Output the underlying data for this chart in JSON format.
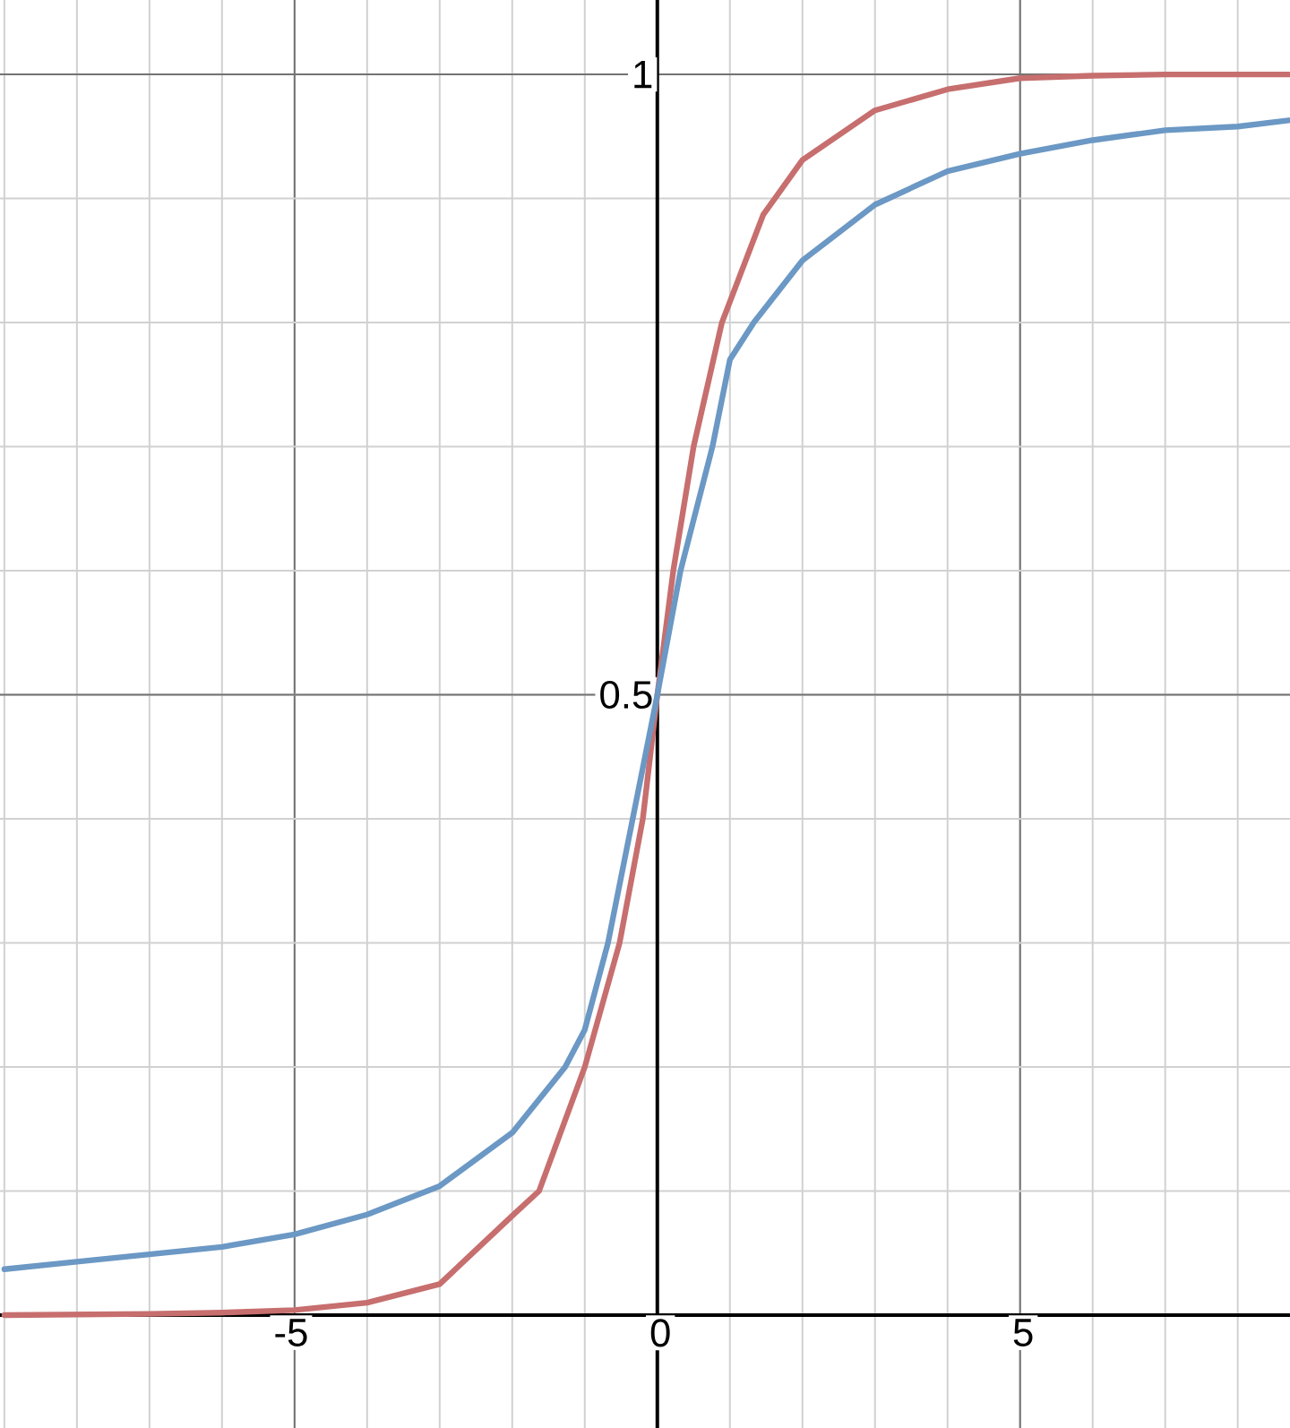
{
  "chart_data": {
    "type": "line",
    "series": [
      {
        "color": "#c76e6e",
        "x": [
          -9,
          -7,
          -6,
          -5,
          -4,
          -3,
          -2,
          -1.63,
          -1,
          -0.52,
          -0.2,
          0,
          0.22,
          0.5,
          0.89,
          1.46,
          2,
          3,
          4,
          5,
          6,
          7,
          8,
          8.7
        ],
        "values": [
          0,
          0.001,
          0.002,
          0.004,
          0.01,
          0.025,
          0.08,
          0.1,
          0.2,
          0.3,
          0.4,
          0.5,
          0.6,
          0.7,
          0.8,
          0.887,
          0.931,
          0.971,
          0.988,
          0.997,
          0.999,
          1,
          1,
          1
        ]
      },
      {
        "color": "#6b98c4",
        "x": [
          -9,
          -8,
          -7,
          -6,
          -5,
          -4,
          -3,
          -2,
          -1.27,
          -1,
          -0.68,
          -0.34,
          0,
          0.32,
          0.76,
          1,
          1.33,
          2,
          3,
          4,
          5,
          6,
          7,
          8,
          8.7
        ],
        "values": [
          0.037,
          0.043,
          0.049,
          0.055,
          0.065,
          0.081,
          0.104,
          0.147,
          0.2,
          0.23,
          0.3,
          0.4,
          0.5,
          0.6,
          0.7,
          0.77,
          0.8,
          0.85,
          0.895,
          0.922,
          0.936,
          0.947,
          0.955,
          0.958,
          0.963
        ]
      }
    ],
    "xlim": [
      -9.06,
      8.72
    ],
    "ylim": [
      -0.091,
      1.06
    ],
    "xticks": [
      -5,
      0,
      5
    ],
    "yticks": [
      0.5,
      1
    ],
    "grid": true
  }
}
